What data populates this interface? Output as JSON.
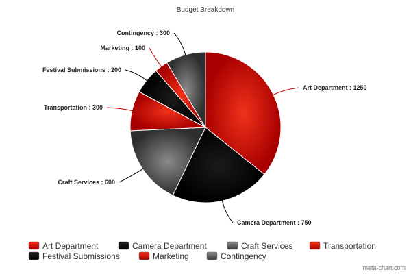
{
  "chart_data": {
    "type": "pie",
    "title": "Budget Breakdown",
    "slices": [
      {
        "label": "Art Department",
        "value": 1250,
        "color": "#d4160a",
        "style": "red"
      },
      {
        "label": "Camera Department",
        "value": 750,
        "color": "#000000",
        "style": "black"
      },
      {
        "label": "Craft Services",
        "value": 600,
        "color": "#4a4a4a",
        "style": "gray"
      },
      {
        "label": "Transportation",
        "value": 300,
        "color": "#d4160a",
        "style": "red"
      },
      {
        "label": "Festival Submissions",
        "value": 200,
        "color": "#000000",
        "style": "black"
      },
      {
        "label": "Marketing",
        "value": 100,
        "color": "#d4160a",
        "style": "red"
      },
      {
        "label": "Contingency",
        "value": 300,
        "color": "#4a4a4a",
        "style": "gray"
      }
    ],
    "legend": {
      "placement": "bottom",
      "items": [
        "Art Department",
        "Camera Department",
        "Craft Services",
        "Transportation",
        "Festival Submissions",
        "Marketing",
        "Contingency"
      ]
    },
    "label_separator": " : "
  },
  "footer": {
    "watermark": "meta-chart.com"
  }
}
